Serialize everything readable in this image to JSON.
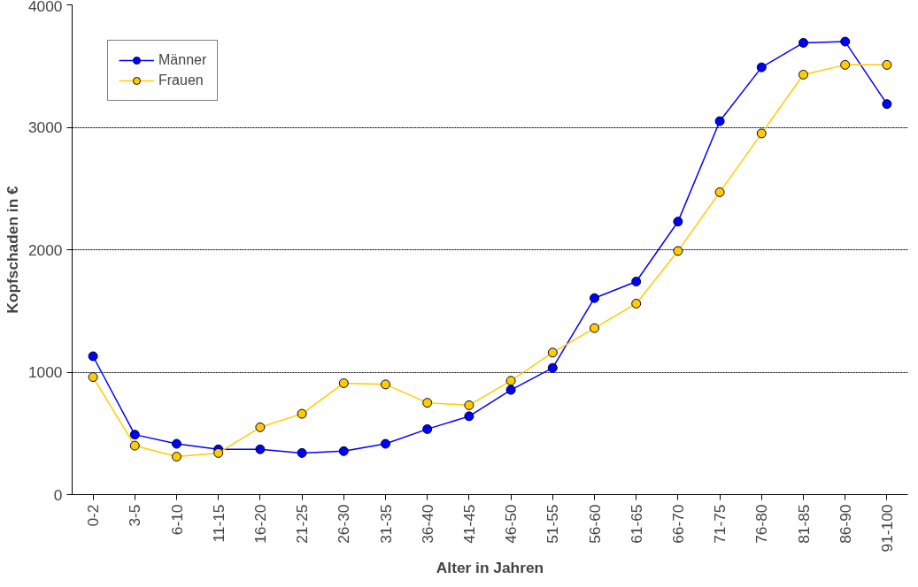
{
  "chart_data": {
    "type": "line",
    "xlabel": "Alter in Jahren",
    "ylabel": "Kopfschaden in €",
    "categories": [
      "0-2",
      "3-5",
      "6-10",
      "11-15",
      "16-20",
      "21-25",
      "26-30",
      "31-35",
      "36-40",
      "41-45",
      "46-50",
      "51-55",
      "56-60",
      "61-65",
      "66-70",
      "71-75",
      "76-80",
      "81-85",
      "86-90",
      "91-100"
    ],
    "series": [
      {
        "name": "Männer",
        "color": "#0000ff",
        "values": [
          1130,
          490,
          415,
          370,
          370,
          340,
          355,
          415,
          535,
          640,
          855,
          1035,
          1605,
          1740,
          2230,
          3050,
          3490,
          3690,
          3700,
          3190
        ]
      },
      {
        "name": "Frauen",
        "color": "#ffcc00",
        "values": [
          960,
          400,
          310,
          340,
          550,
          660,
          910,
          900,
          750,
          730,
          930,
          1160,
          1360,
          1560,
          1990,
          2470,
          2950,
          3430,
          3510,
          3510
        ]
      }
    ],
    "ylim": [
      0,
      4000
    ],
    "yticks": [
      0,
      1000,
      2000,
      3000,
      4000
    ],
    "grid": "y",
    "legend": "top left",
    "marker": "circle",
    "line_style": "solid"
  }
}
